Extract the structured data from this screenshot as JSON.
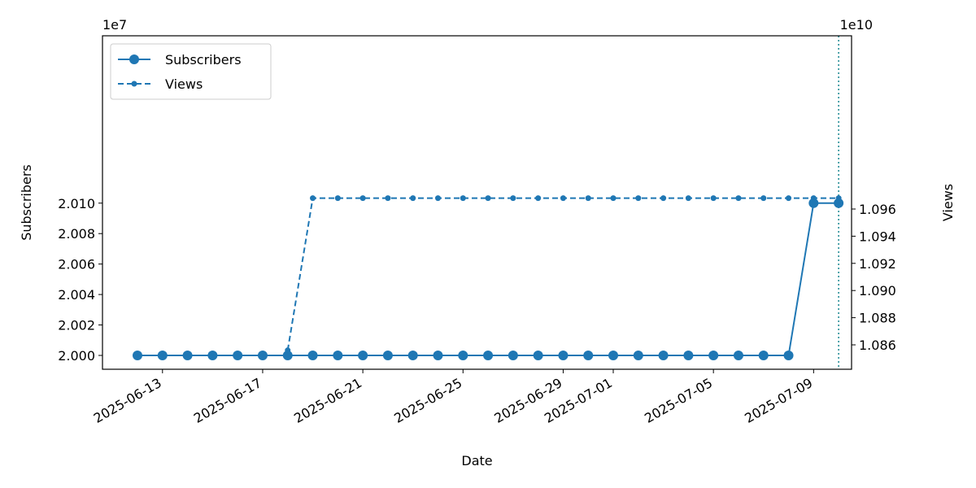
{
  "chart_data": {
    "type": "line",
    "xlabel": "Date",
    "ylabel_left": "Subscribers",
    "ylabel_right": "Views",
    "left_offset_label": "1e7",
    "right_offset_label": "1e10",
    "x": [
      "2025-06-12",
      "2025-06-13",
      "2025-06-14",
      "2025-06-15",
      "2025-06-16",
      "2025-06-17",
      "2025-06-18",
      "2025-06-19",
      "2025-06-20",
      "2025-06-21",
      "2025-06-22",
      "2025-06-23",
      "2025-06-24",
      "2025-06-25",
      "2025-06-26",
      "2025-06-27",
      "2025-06-28",
      "2025-06-29",
      "2025-06-30",
      "2025-07-01",
      "2025-07-02",
      "2025-07-03",
      "2025-07-04",
      "2025-07-05",
      "2025-07-06",
      "2025-07-07",
      "2025-07-08",
      "2025-07-09",
      "2025-07-10"
    ],
    "x_tick_labels": [
      "2025-06-13",
      "2025-06-17",
      "2025-06-21",
      "2025-06-25",
      "2025-06-29",
      "2025-07-01",
      "2025-07-05",
      "2025-07-09"
    ],
    "y_left_ticks": [
      "2.000",
      "2.002",
      "2.004",
      "2.006",
      "2.008",
      "2.010"
    ],
    "y_right_ticks": [
      "1.086",
      "1.088",
      "1.090",
      "1.092",
      "1.094",
      "1.096"
    ],
    "ylim_left": [
      1.99995,
      2.01035
    ],
    "ylim_right": [
      1.085,
      1.0973
    ],
    "series": [
      {
        "name": "Subscribers",
        "axis": "left",
        "style": "solid",
        "marker": "circle-large",
        "color": "#1f77b4",
        "values": [
          2.0,
          2.0,
          2.0,
          2.0,
          2.0,
          2.0,
          2.0,
          2.0,
          2.0,
          2.0,
          2.0,
          2.0,
          2.0,
          2.0,
          2.0,
          2.0,
          2.0,
          2.0,
          2.0,
          2.0,
          2.0,
          2.0,
          2.0,
          2.0,
          2.0,
          2.0,
          2.0,
          2.01,
          2.01
        ]
      },
      {
        "name": "Views",
        "axis": "right",
        "style": "dashed",
        "marker": "circle-small",
        "color": "#1f77b4",
        "values": [
          null,
          null,
          null,
          null,
          null,
          null,
          1.0856,
          1.0968,
          1.0968,
          1.0968,
          1.0968,
          1.0968,
          1.0968,
          1.0968,
          1.0968,
          1.0968,
          1.0968,
          1.0968,
          1.0968,
          1.0968,
          1.0968,
          1.0968,
          1.0968,
          1.0968,
          1.0968,
          1.0968,
          1.0968,
          1.0968,
          1.0968
        ]
      }
    ],
    "vline_x": "2025-07-10",
    "vline_color": "#17868f",
    "legend_position": "upper-left",
    "grid": false
  }
}
